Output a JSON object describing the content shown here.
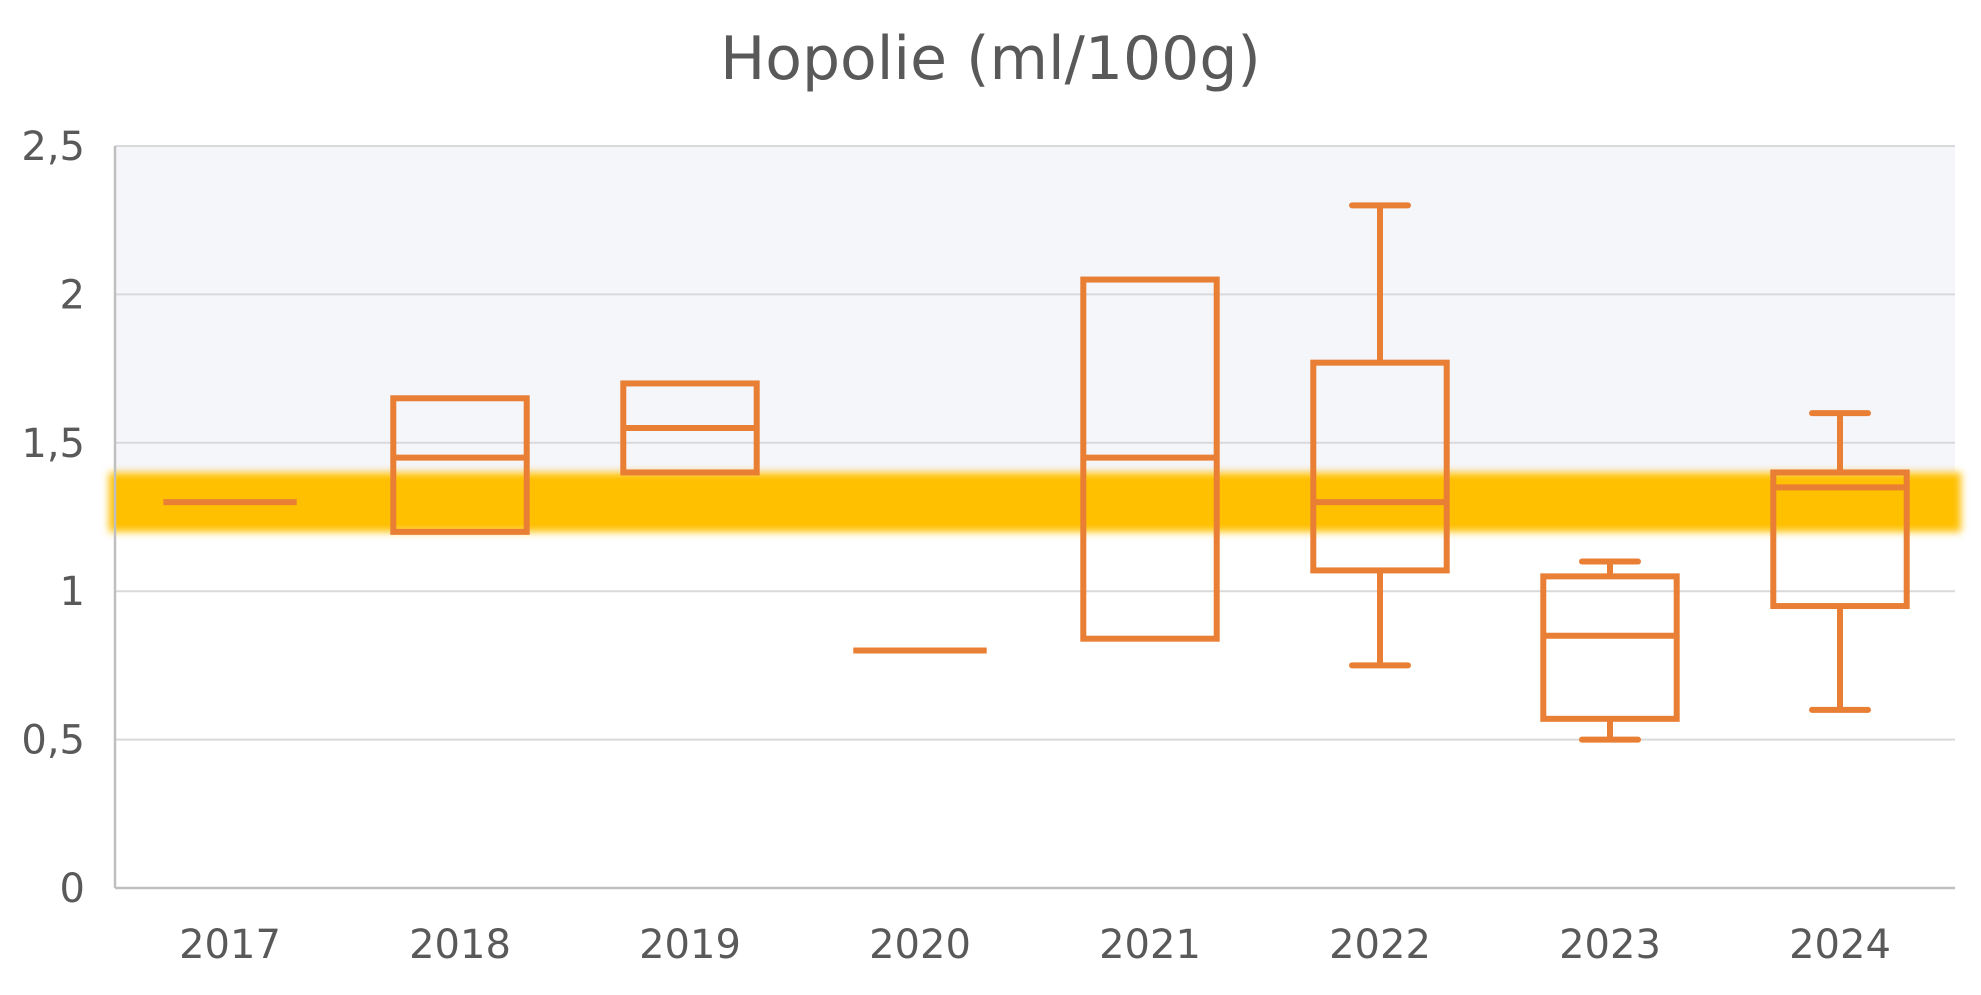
{
  "chart_data": {
    "type": "boxplot",
    "title": "Hopolie (ml/100g)",
    "xlabel": "",
    "ylabel": "",
    "ylim": [
      0,
      2.5
    ],
    "y_ticks": [
      "0",
      "0,5",
      "1",
      "1,5",
      "2",
      "2,5"
    ],
    "y_tick_values": [
      0,
      0.5,
      1,
      1.5,
      2,
      2.5
    ],
    "grid": true,
    "categories": [
      "2017",
      "2018",
      "2019",
      "2020",
      "2021",
      "2022",
      "2023",
      "2024"
    ],
    "boxes": [
      {
        "min": 1.3,
        "q1": 1.3,
        "median": 1.3,
        "q3": 1.3,
        "max": 1.3
      },
      {
        "min": 1.2,
        "q1": 1.2,
        "median": 1.45,
        "q3": 1.65,
        "max": 1.65
      },
      {
        "min": 1.4,
        "q1": 1.4,
        "median": 1.55,
        "q3": 1.7,
        "max": 1.7
      },
      {
        "min": 0.8,
        "q1": 0.8,
        "median": 0.8,
        "q3": 0.8,
        "max": 0.8
      },
      {
        "min": 0.84,
        "q1": 0.84,
        "median": 1.45,
        "q3": 2.05,
        "max": 2.05
      },
      {
        "min": 0.75,
        "q1": 1.07,
        "median": 1.3,
        "q3": 1.77,
        "max": 2.3
      },
      {
        "min": 0.5,
        "q1": 0.57,
        "median": 0.85,
        "q3": 1.05,
        "max": 1.1
      },
      {
        "min": 0.6,
        "q1": 0.95,
        "median": 1.35,
        "q3": 1.4,
        "max": 1.6
      }
    ],
    "reference_band": {
      "from": 1.2,
      "to": 1.4,
      "color": "#FFC000"
    },
    "upper_region": {
      "from": 1.4,
      "to": 2.5,
      "color": "#F5F6FA"
    },
    "box_color": "#E97F34",
    "grid_color": "#D9D9D9",
    "axis_color": "#BFBFBF"
  }
}
